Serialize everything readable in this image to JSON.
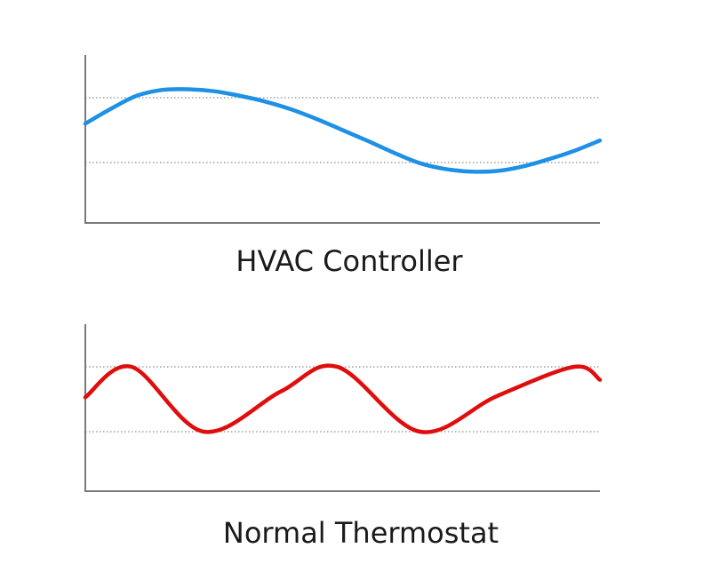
{
  "chart_data": [
    {
      "type": "line",
      "title": "HVAC Controller",
      "xlabel": "",
      "ylabel": "",
      "grid": false,
      "guide_lines": [
        "upper",
        "lower"
      ],
      "color": "#1e90e6",
      "series": [
        {
          "x": [
            0,
            0.05,
            0.1,
            0.15,
            0.2,
            0.25,
            0.3,
            0.35,
            0.4,
            0.45,
            0.5,
            0.55,
            0.6,
            0.65,
            0.7,
            0.75,
            0.8,
            0.85,
            0.9,
            0.95,
            1.0
          ],
          "values": [
            0.6,
            0.83,
            1.03,
            1.12,
            1.13,
            1.1,
            1.03,
            0.94,
            0.82,
            0.67,
            0.5,
            0.33,
            0.15,
            -0.01,
            -0.1,
            -0.14,
            -0.13,
            -0.06,
            0.05,
            0.18,
            0.34
          ]
        }
      ]
    },
    {
      "type": "line",
      "title": "Normal Thermostat",
      "xlabel": "",
      "ylabel": "",
      "grid": false,
      "guide_lines": [
        "upper",
        "lower"
      ],
      "color": "#e00d0d",
      "series": [
        {
          "x": [
            0,
            0.09,
            0.23,
            0.38,
            0.49,
            0.65,
            0.8,
            0.95,
            1.0
          ],
          "values": [
            0.53,
            1.0,
            0.0,
            0.62,
            1.0,
            0.0,
            0.55,
            1.0,
            0.8
          ]
        }
      ]
    }
  ]
}
